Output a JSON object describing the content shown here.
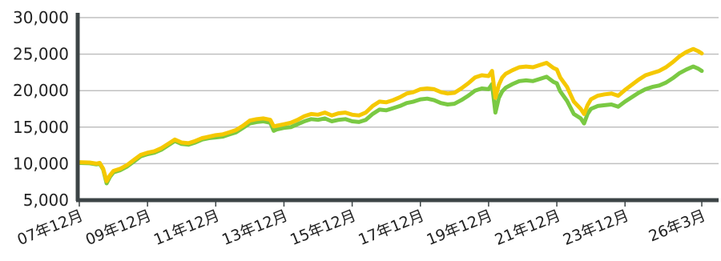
{
  "chart_data": {
    "type": "line",
    "title": "",
    "xlabel": "",
    "ylabel": "",
    "ylim": [
      5000,
      30000
    ],
    "y_ticks": [
      5000,
      10000,
      15000,
      20000,
      25000,
      30000
    ],
    "y_tick_labels": [
      "5,000",
      "10,000",
      "15,000",
      "20,000",
      "25,000",
      "30,000"
    ],
    "x_ticks": [
      {
        "pos": 0.0,
        "label": "07年12月"
      },
      {
        "pos": 2.0,
        "label": "09年12月"
      },
      {
        "pos": 4.0,
        "label": "11年12月"
      },
      {
        "pos": 6.0,
        "label": "13年12月"
      },
      {
        "pos": 8.0,
        "label": "15年12月"
      },
      {
        "pos": 10.0,
        "label": "17年12月"
      },
      {
        "pos": 12.0,
        "label": "19年12月"
      },
      {
        "pos": 14.0,
        "label": "21年12月"
      },
      {
        "pos": 16.0,
        "label": "23年12月"
      },
      {
        "pos": 18.25,
        "label": "26年3月"
      }
    ],
    "xlim": [
      0,
      18.25
    ],
    "grid": "horizontal",
    "series": [
      {
        "color": "#f5c800",
        "points": [
          [
            0.0,
            10200
          ],
          [
            0.3,
            10150
          ],
          [
            0.5,
            10000
          ],
          [
            0.6,
            10100
          ],
          [
            0.7,
            9300
          ],
          [
            0.8,
            7600
          ],
          [
            0.9,
            8400
          ],
          [
            1.0,
            9000
          ],
          [
            1.2,
            9300
          ],
          [
            1.4,
            9800
          ],
          [
            1.6,
            10500
          ],
          [
            1.8,
            11200
          ],
          [
            2.0,
            11500
          ],
          [
            2.2,
            11700
          ],
          [
            2.4,
            12100
          ],
          [
            2.6,
            12700
          ],
          [
            2.8,
            13300
          ],
          [
            3.0,
            12900
          ],
          [
            3.2,
            12800
          ],
          [
            3.4,
            13100
          ],
          [
            3.6,
            13500
          ],
          [
            3.8,
            13700
          ],
          [
            4.0,
            13900
          ],
          [
            4.2,
            14000
          ],
          [
            4.4,
            14300
          ],
          [
            4.6,
            14600
          ],
          [
            4.8,
            15200
          ],
          [
            5.0,
            15900
          ],
          [
            5.2,
            16100
          ],
          [
            5.4,
            16200
          ],
          [
            5.6,
            16000
          ],
          [
            5.7,
            15100
          ],
          [
            5.8,
            15200
          ],
          [
            6.0,
            15400
          ],
          [
            6.2,
            15600
          ],
          [
            6.4,
            16000
          ],
          [
            6.6,
            16500
          ],
          [
            6.8,
            16800
          ],
          [
            7.0,
            16700
          ],
          [
            7.2,
            17000
          ],
          [
            7.4,
            16600
          ],
          [
            7.6,
            16900
          ],
          [
            7.8,
            17000
          ],
          [
            8.0,
            16700
          ],
          [
            8.2,
            16600
          ],
          [
            8.4,
            17000
          ],
          [
            8.6,
            17900
          ],
          [
            8.8,
            18500
          ],
          [
            9.0,
            18400
          ],
          [
            9.2,
            18700
          ],
          [
            9.4,
            19100
          ],
          [
            9.6,
            19600
          ],
          [
            9.8,
            19800
          ],
          [
            10.0,
            20200
          ],
          [
            10.2,
            20300
          ],
          [
            10.4,
            20200
          ],
          [
            10.6,
            19800
          ],
          [
            10.8,
            19600
          ],
          [
            11.0,
            19700
          ],
          [
            11.2,
            20300
          ],
          [
            11.4,
            21000
          ],
          [
            11.6,
            21800
          ],
          [
            11.8,
            22100
          ],
          [
            12.0,
            22000
          ],
          [
            12.1,
            22700
          ],
          [
            12.2,
            19000
          ],
          [
            12.3,
            20800
          ],
          [
            12.4,
            21800
          ],
          [
            12.5,
            22300
          ],
          [
            12.7,
            22800
          ],
          [
            12.9,
            23200
          ],
          [
            13.1,
            23300
          ],
          [
            13.3,
            23200
          ],
          [
            13.5,
            23500
          ],
          [
            13.7,
            23800
          ],
          [
            13.9,
            23100
          ],
          [
            14.0,
            22900
          ],
          [
            14.1,
            21800
          ],
          [
            14.3,
            20500
          ],
          [
            14.5,
            18500
          ],
          [
            14.7,
            17500
          ],
          [
            14.8,
            16800
          ],
          [
            14.9,
            18000
          ],
          [
            15.0,
            18800
          ],
          [
            15.2,
            19300
          ],
          [
            15.4,
            19500
          ],
          [
            15.6,
            19600
          ],
          [
            15.8,
            19300
          ],
          [
            16.0,
            20100
          ],
          [
            16.2,
            20800
          ],
          [
            16.4,
            21500
          ],
          [
            16.6,
            22100
          ],
          [
            16.8,
            22400
          ],
          [
            17.0,
            22700
          ],
          [
            17.2,
            23200
          ],
          [
            17.4,
            23900
          ],
          [
            17.6,
            24700
          ],
          [
            17.8,
            25300
          ],
          [
            18.0,
            25700
          ],
          [
            18.15,
            25400
          ],
          [
            18.25,
            25100
          ]
        ]
      },
      {
        "color": "#7ac943",
        "points": [
          [
            0.0,
            10100
          ],
          [
            0.3,
            10050
          ],
          [
            0.5,
            9900
          ],
          [
            0.6,
            10000
          ],
          [
            0.7,
            9200
          ],
          [
            0.8,
            7300
          ],
          [
            0.9,
            8200
          ],
          [
            1.0,
            8800
          ],
          [
            1.2,
            9100
          ],
          [
            1.4,
            9600
          ],
          [
            1.6,
            10300
          ],
          [
            1.8,
            11000
          ],
          [
            2.0,
            11300
          ],
          [
            2.2,
            11500
          ],
          [
            2.4,
            11900
          ],
          [
            2.6,
            12500
          ],
          [
            2.8,
            13100
          ],
          [
            3.0,
            12700
          ],
          [
            3.2,
            12600
          ],
          [
            3.4,
            12900
          ],
          [
            3.6,
            13300
          ],
          [
            3.8,
            13500
          ],
          [
            4.0,
            13600
          ],
          [
            4.2,
            13700
          ],
          [
            4.4,
            14000
          ],
          [
            4.6,
            14300
          ],
          [
            4.8,
            14900
          ],
          [
            5.0,
            15500
          ],
          [
            5.2,
            15700
          ],
          [
            5.4,
            15800
          ],
          [
            5.6,
            15600
          ],
          [
            5.7,
            14500
          ],
          [
            5.8,
            14700
          ],
          [
            6.0,
            14900
          ],
          [
            6.2,
            15000
          ],
          [
            6.4,
            15400
          ],
          [
            6.6,
            15800
          ],
          [
            6.8,
            16100
          ],
          [
            7.0,
            16000
          ],
          [
            7.2,
            16200
          ],
          [
            7.4,
            15800
          ],
          [
            7.6,
            16000
          ],
          [
            7.8,
            16100
          ],
          [
            8.0,
            15800
          ],
          [
            8.2,
            15700
          ],
          [
            8.4,
            16000
          ],
          [
            8.6,
            16800
          ],
          [
            8.8,
            17400
          ],
          [
            9.0,
            17300
          ],
          [
            9.2,
            17600
          ],
          [
            9.4,
            17900
          ],
          [
            9.6,
            18300
          ],
          [
            9.8,
            18500
          ],
          [
            10.0,
            18800
          ],
          [
            10.2,
            18900
          ],
          [
            10.4,
            18700
          ],
          [
            10.6,
            18300
          ],
          [
            10.8,
            18100
          ],
          [
            11.0,
            18200
          ],
          [
            11.2,
            18700
          ],
          [
            11.4,
            19300
          ],
          [
            11.6,
            20000
          ],
          [
            11.8,
            20300
          ],
          [
            12.0,
            20200
          ],
          [
            12.1,
            20900
          ],
          [
            12.2,
            17000
          ],
          [
            12.3,
            19000
          ],
          [
            12.4,
            19900
          ],
          [
            12.5,
            20400
          ],
          [
            12.7,
            20900
          ],
          [
            12.9,
            21300
          ],
          [
            13.1,
            21400
          ],
          [
            13.3,
            21300
          ],
          [
            13.5,
            21600
          ],
          [
            13.7,
            21900
          ],
          [
            13.9,
            21200
          ],
          [
            14.0,
            21000
          ],
          [
            14.1,
            19900
          ],
          [
            14.3,
            18600
          ],
          [
            14.5,
            16800
          ],
          [
            14.7,
            16200
          ],
          [
            14.8,
            15500
          ],
          [
            14.9,
            16800
          ],
          [
            15.0,
            17500
          ],
          [
            15.2,
            17900
          ],
          [
            15.4,
            18000
          ],
          [
            15.6,
            18100
          ],
          [
            15.8,
            17800
          ],
          [
            16.0,
            18500
          ],
          [
            16.2,
            19100
          ],
          [
            16.4,
            19700
          ],
          [
            16.6,
            20200
          ],
          [
            16.8,
            20500
          ],
          [
            17.0,
            20700
          ],
          [
            17.2,
            21100
          ],
          [
            17.4,
            21700
          ],
          [
            17.6,
            22400
          ],
          [
            17.8,
            22900
          ],
          [
            18.0,
            23300
          ],
          [
            18.15,
            23000
          ],
          [
            18.25,
            22700
          ]
        ]
      }
    ]
  }
}
